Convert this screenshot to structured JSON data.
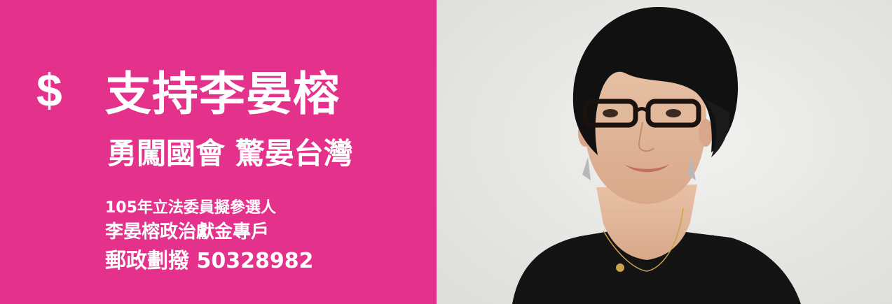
{
  "banner": {
    "currency_symbol": "$",
    "headline": "支持李晏榕",
    "slogan": "勇闖國會 驚晏台灣",
    "info": {
      "line1": "105年立法委員擬參選人",
      "line2": "李晏榕政治獻金專戶",
      "line3": "郵政劃撥 50328982"
    }
  },
  "colors": {
    "accent": "#e4328c",
    "text": "#ffffff",
    "photo_background": "#e8e8e6"
  },
  "icons": {
    "currency": "dollar-sign-icon"
  }
}
